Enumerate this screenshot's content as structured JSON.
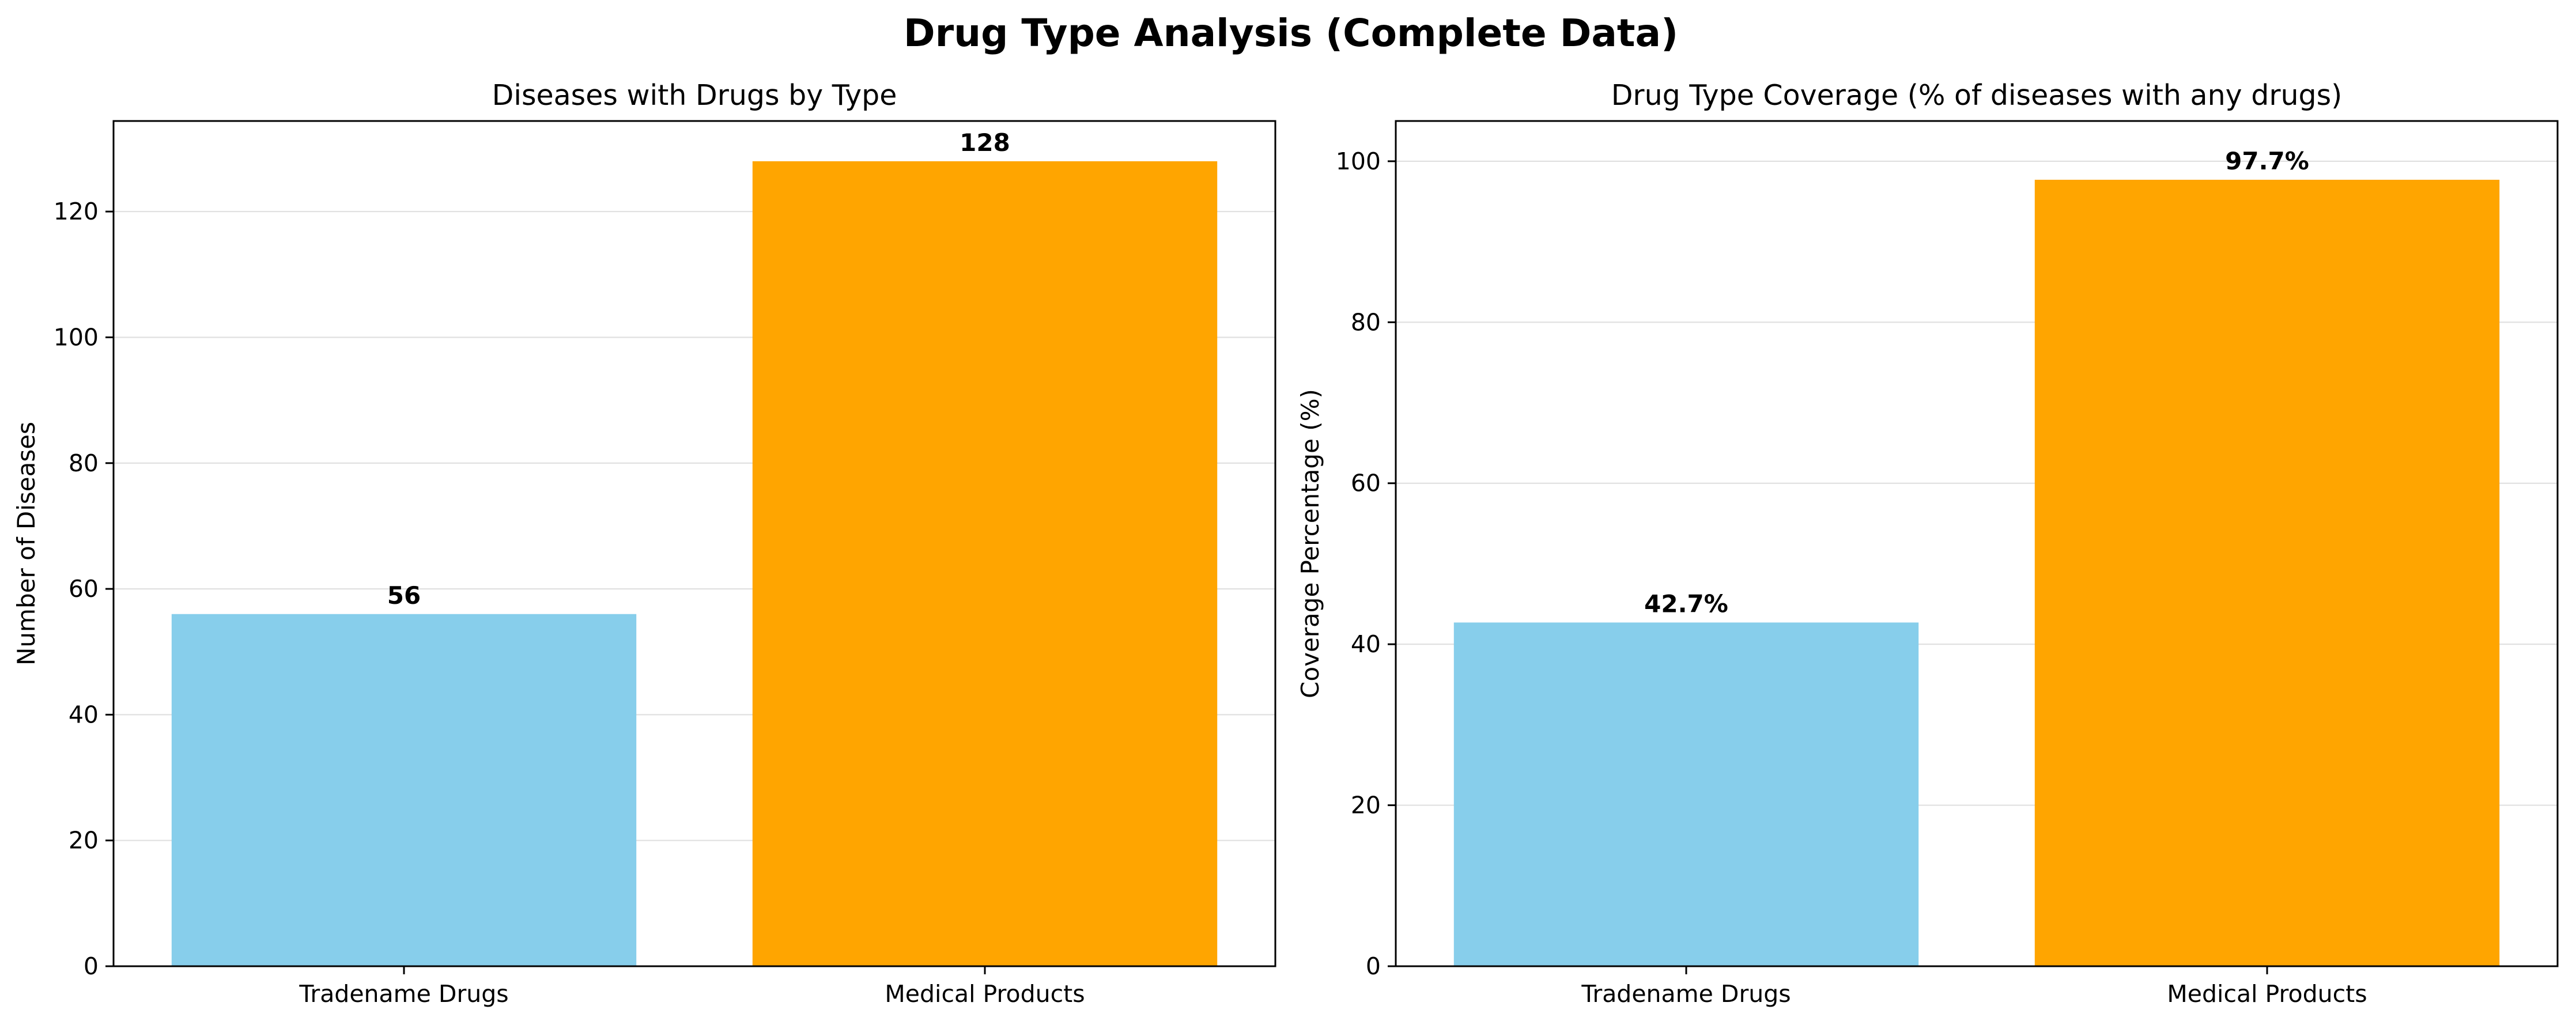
{
  "figure": {
    "title": "Drug Type Analysis (Complete Data)"
  },
  "chart_data": [
    {
      "type": "bar",
      "title": "Diseases with Drugs by Type",
      "xlabel": "",
      "ylabel": "Number of Diseases",
      "categories": [
        "Tradename Drugs",
        "Medical Products"
      ],
      "values": [
        56,
        128
      ],
      "value_labels": [
        "56",
        "128"
      ],
      "colors": [
        "#87CEEB",
        "#FFA500"
      ],
      "ylim": [
        0,
        134.4
      ],
      "yticks": [
        0,
        20,
        40,
        60,
        80,
        100,
        120
      ],
      "ytick_labels": [
        "0",
        "20",
        "40",
        "60",
        "80",
        "100",
        "120"
      ],
      "grid": "y-axis"
    },
    {
      "type": "bar",
      "title": "Drug Type Coverage (% of diseases with any drugs)",
      "xlabel": "",
      "ylabel": "Coverage Percentage (%)",
      "categories": [
        "Tradename Drugs",
        "Medical Products"
      ],
      "values": [
        42.7,
        97.7
      ],
      "value_labels": [
        "42.7%",
        "97.7%"
      ],
      "colors": [
        "#87CEEB",
        "#FFA500"
      ],
      "ylim": [
        0,
        105
      ],
      "yticks": [
        0,
        20,
        40,
        60,
        80,
        100
      ],
      "ytick_labels": [
        "0",
        "20",
        "40",
        "60",
        "80",
        "100"
      ],
      "grid": "y-axis"
    }
  ]
}
